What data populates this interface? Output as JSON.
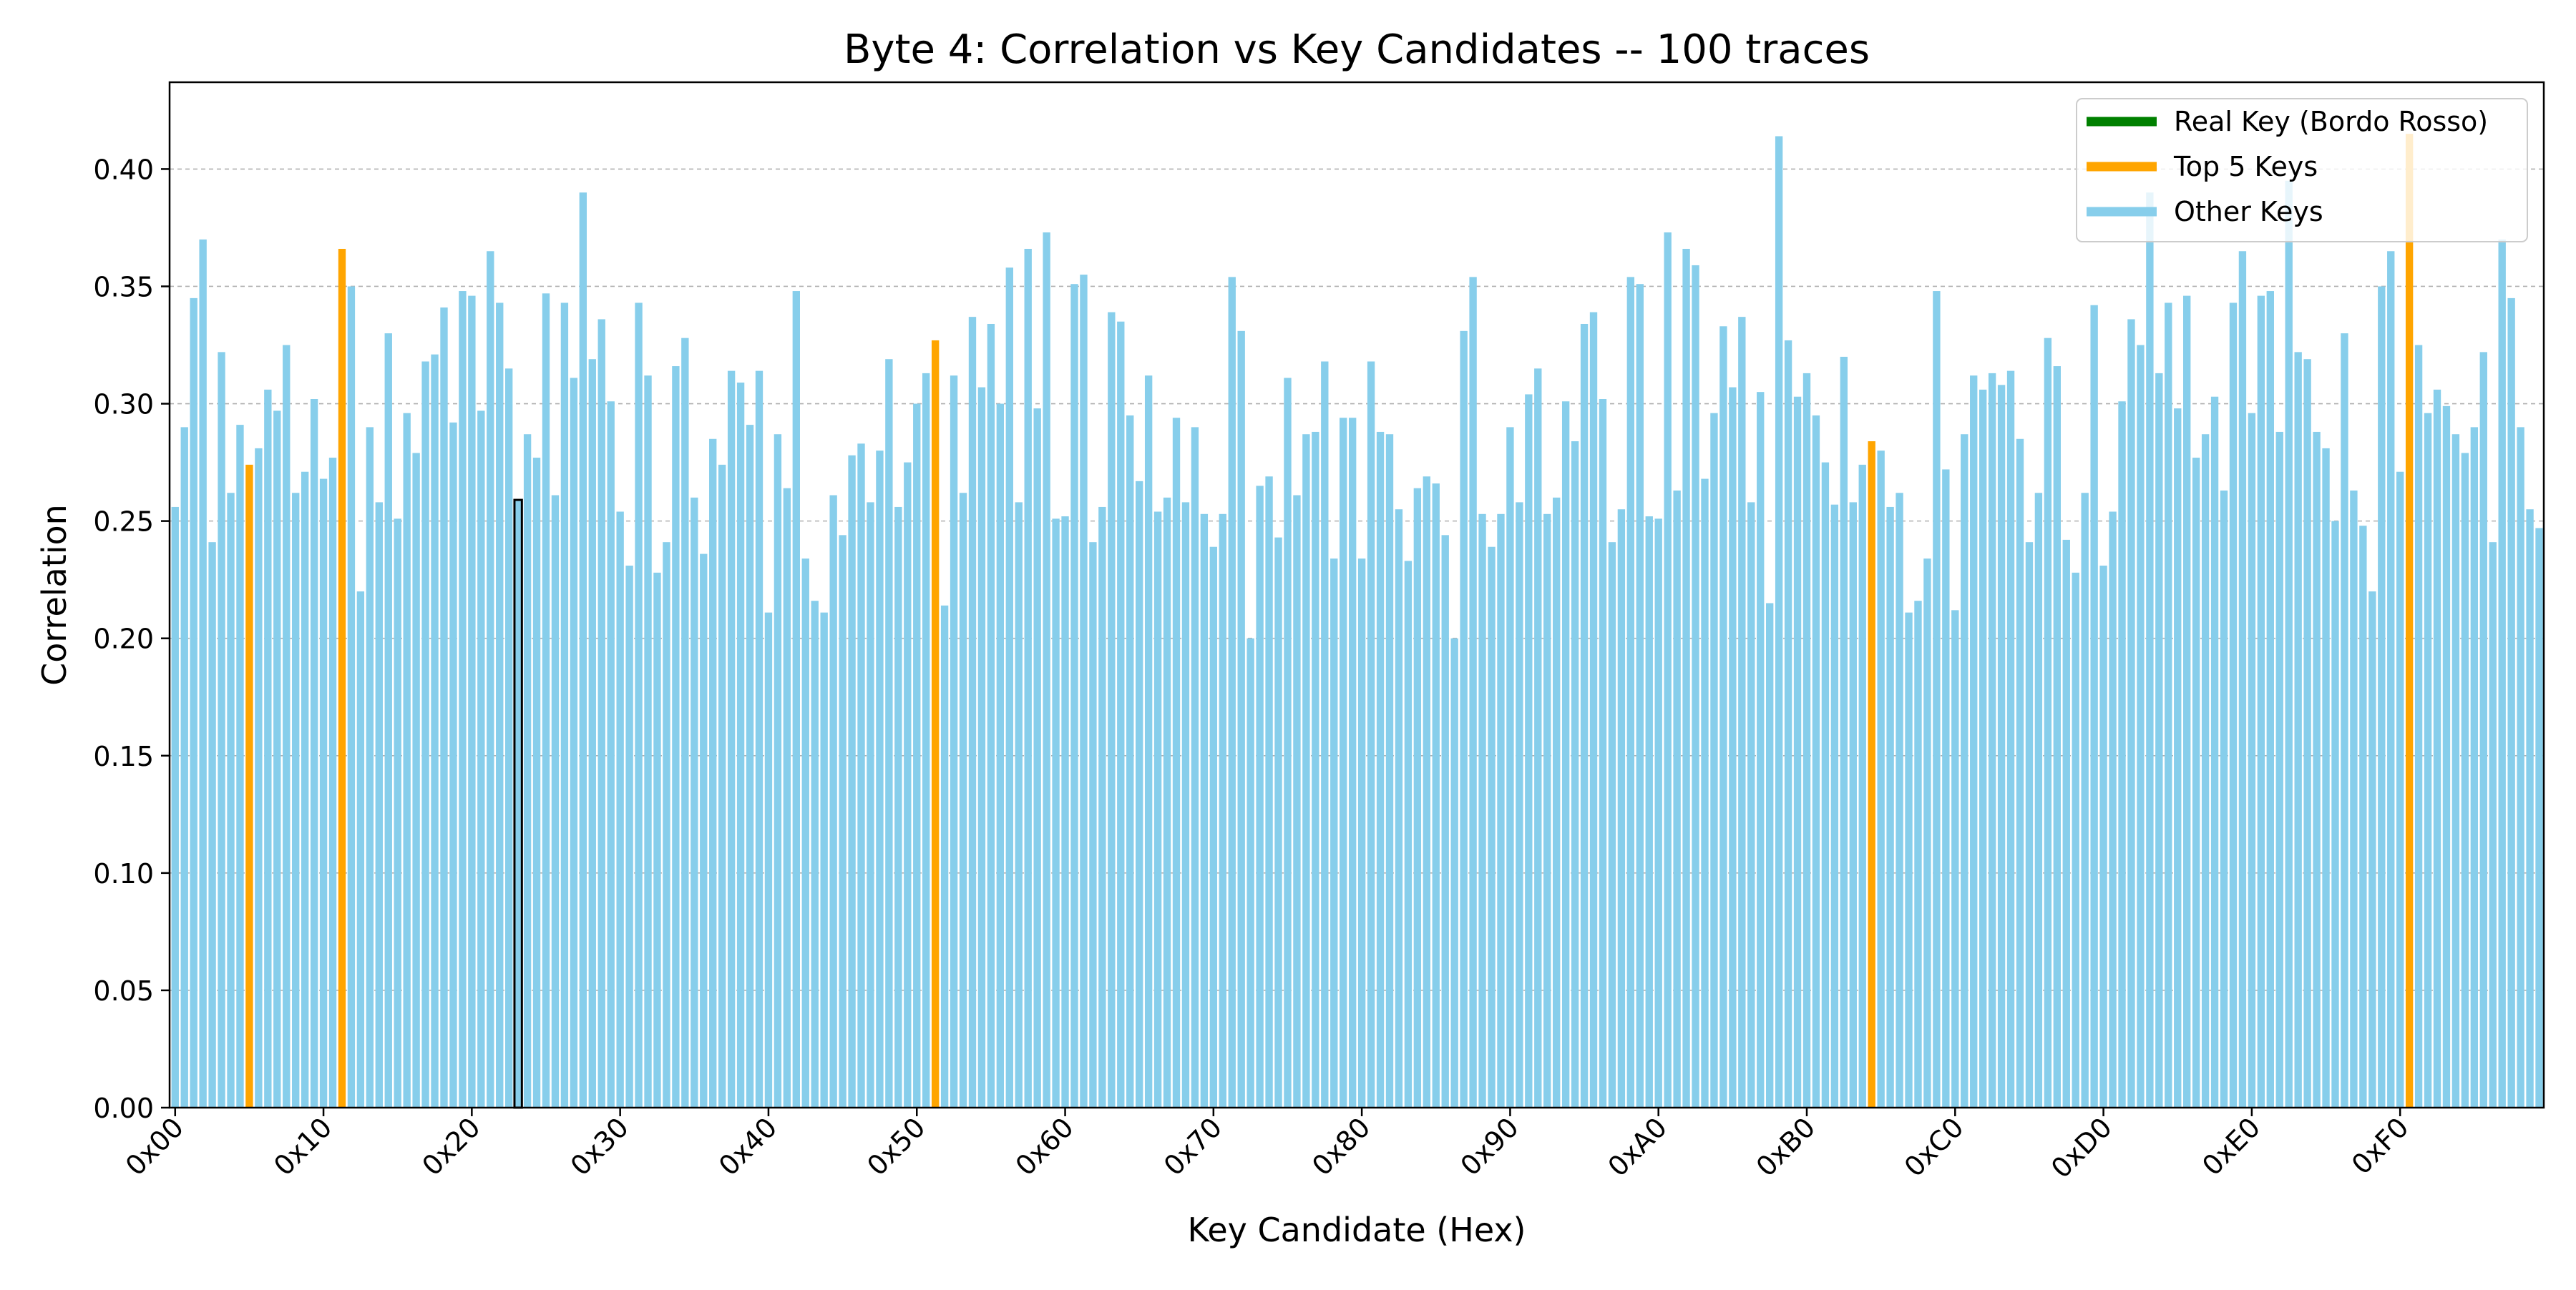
{
  "chart_data": {
    "type": "bar",
    "title": "Byte 4: Correlation vs Key Candidates -- 100 traces",
    "xlabel": "Key Candidate (Hex)",
    "ylabel": "Correlation",
    "ylim": [
      0,
      0.437
    ],
    "xlim": [
      -0.6,
      255.5
    ],
    "grid": "horizontal dashed",
    "legend_position": "top-right",
    "y_ticks": [
      "0.00",
      "0.05",
      "0.10",
      "0.15",
      "0.20",
      "0.25",
      "0.30",
      "0.35",
      "0.40"
    ],
    "x_ticks": [
      "0x00",
      "0x10",
      "0x20",
      "0x30",
      "0x40",
      "0x50",
      "0x60",
      "0x70",
      "0x80",
      "0x90",
      "0xA0",
      "0xB0",
      "0xC0",
      "0xD0",
      "0xE0",
      "0xF0"
    ],
    "legend": [
      {
        "label": "Real Key (Bordo Rosso)",
        "color": "#008000"
      },
      {
        "label": "Top 5 Keys",
        "color": "#FFA500"
      },
      {
        "label": "Other Keys",
        "color": "#87CEEB"
      }
    ],
    "colors": {
      "other": "#87CEEB",
      "top": "#FFA500",
      "real": "#008000",
      "real_edge": "#000000"
    },
    "top_indices": [
      8,
      18,
      82,
      183,
      241
    ],
    "real_key_index": 37,
    "values": [
      0.256,
      0.29,
      0.345,
      0.37,
      0.241,
      0.322,
      0.262,
      0.291,
      0.274,
      0.281,
      0.306,
      0.297,
      0.325,
      0.262,
      0.271,
      0.302,
      0.268,
      0.277,
      0.366,
      0.35,
      0.22,
      0.29,
      0.258,
      0.33,
      0.251,
      0.296,
      0.279,
      0.318,
      0.321,
      0.341,
      0.292,
      0.348,
      0.346,
      0.297,
      0.365,
      0.343,
      0.315,
      0.259,
      0.287,
      0.277,
      0.347,
      0.261,
      0.343,
      0.311,
      0.39,
      0.319,
      0.336,
      0.301,
      0.254,
      0.231,
      0.343,
      0.312,
      0.228,
      0.241,
      0.316,
      0.328,
      0.26,
      0.236,
      0.285,
      0.274,
      0.314,
      0.309,
      0.291,
      0.314,
      0.211,
      0.287,
      0.264,
      0.348,
      0.234,
      0.216,
      0.211,
      0.261,
      0.244,
      0.278,
      0.283,
      0.258,
      0.28,
      0.319,
      0.256,
      0.275,
      0.3,
      0.313,
      0.327,
      0.214,
      0.312,
      0.262,
      0.337,
      0.307,
      0.334,
      0.3,
      0.358,
      0.258,
      0.366,
      0.298,
      0.373,
      0.251,
      0.252,
      0.351,
      0.355,
      0.241,
      0.256,
      0.339,
      0.335,
      0.295,
      0.267,
      0.312,
      0.254,
      0.26,
      0.294,
      0.258,
      0.29,
      0.253,
      0.239,
      0.253,
      0.354,
      0.331,
      0.2,
      0.265,
      0.269,
      0.243,
      0.311,
      0.261,
      0.287,
      0.288,
      0.318,
      0.234,
      0.294,
      0.294,
      0.234,
      0.318,
      0.288,
      0.287,
      0.255,
      0.233,
      0.264,
      0.269,
      0.266,
      0.244,
      0.2,
      0.331,
      0.354,
      0.253,
      0.239,
      0.253,
      0.29,
      0.258,
      0.304,
      0.315,
      0.253,
      0.26,
      0.301,
      0.284,
      0.334,
      0.339,
      0.302,
      0.241,
      0.255,
      0.354,
      0.351,
      0.252,
      0.251,
      0.373,
      0.263,
      0.366,
      0.359,
      0.268,
      0.296,
      0.333,
      0.307,
      0.337,
      0.258,
      0.305,
      0.215,
      0.414,
      0.327,
      0.303,
      0.313,
      0.295,
      0.275,
      0.257,
      0.32,
      0.258,
      0.274,
      0.284,
      0.28,
      0.256,
      0.262,
      0.211,
      0.216,
      0.234,
      0.348,
      0.272,
      0.212,
      0.287,
      0.312,
      0.306,
      0.313,
      0.308,
      0.314,
      0.285,
      0.241,
      0.262,
      0.328,
      0.316,
      0.242,
      0.228,
      0.262,
      0.342,
      0.231,
      0.254,
      0.301,
      0.336,
      0.325,
      0.39,
      0.313,
      0.343,
      0.298,
      0.346,
      0.277,
      0.287,
      0.303,
      0.263,
      0.343,
      0.365,
      0.296,
      0.346,
      0.348,
      0.288,
      0.395,
      0.322,
      0.319,
      0.288,
      0.281,
      0.25,
      0.33,
      0.263,
      0.248,
      0.22,
      0.35,
      0.365,
      0.271,
      0.415,
      0.325,
      0.296,
      0.306,
      0.299,
      0.287,
      0.279,
      0.29,
      0.322,
      0.241,
      0.37,
      0.345,
      0.29,
      0.255,
      0.247
    ]
  }
}
